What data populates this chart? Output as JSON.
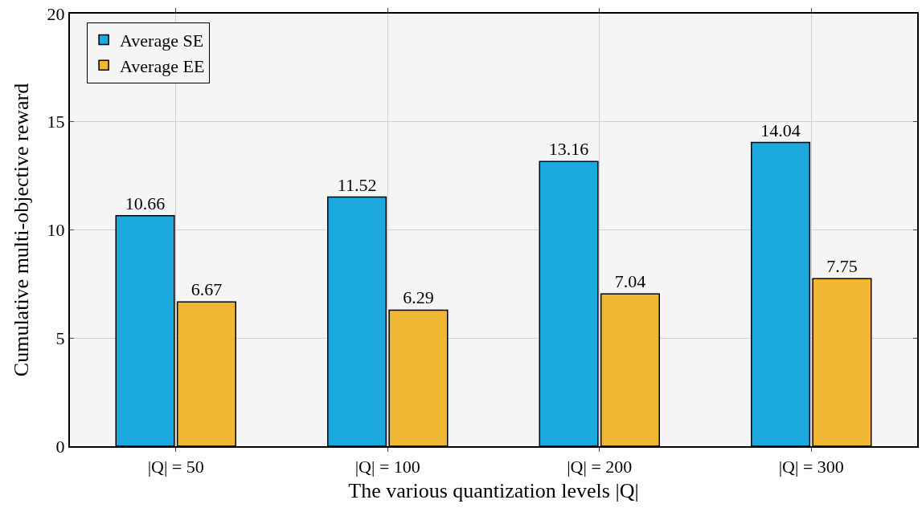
{
  "chart_data": {
    "type": "bar",
    "xlabel": "The various quantization levels |Q|",
    "ylabel": "Cumulative multi-objective reward",
    "categories": [
      "|Q| = 50",
      "|Q| = 100",
      "|Q| = 200",
      "|Q| = 300"
    ],
    "series": [
      {
        "name": "Average SE",
        "color": "#1ca9e0",
        "values": [
          10.66,
          11.52,
          13.16,
          14.04
        ]
      },
      {
        "name": "Average EE",
        "color": "#f0b732",
        "values": [
          6.67,
          6.29,
          7.04,
          7.75
        ]
      }
    ],
    "ylim": [
      0,
      20
    ],
    "yticks": [
      0,
      5,
      10,
      15,
      20
    ],
    "grid": true,
    "legend": "top left",
    "data_labels": true
  }
}
